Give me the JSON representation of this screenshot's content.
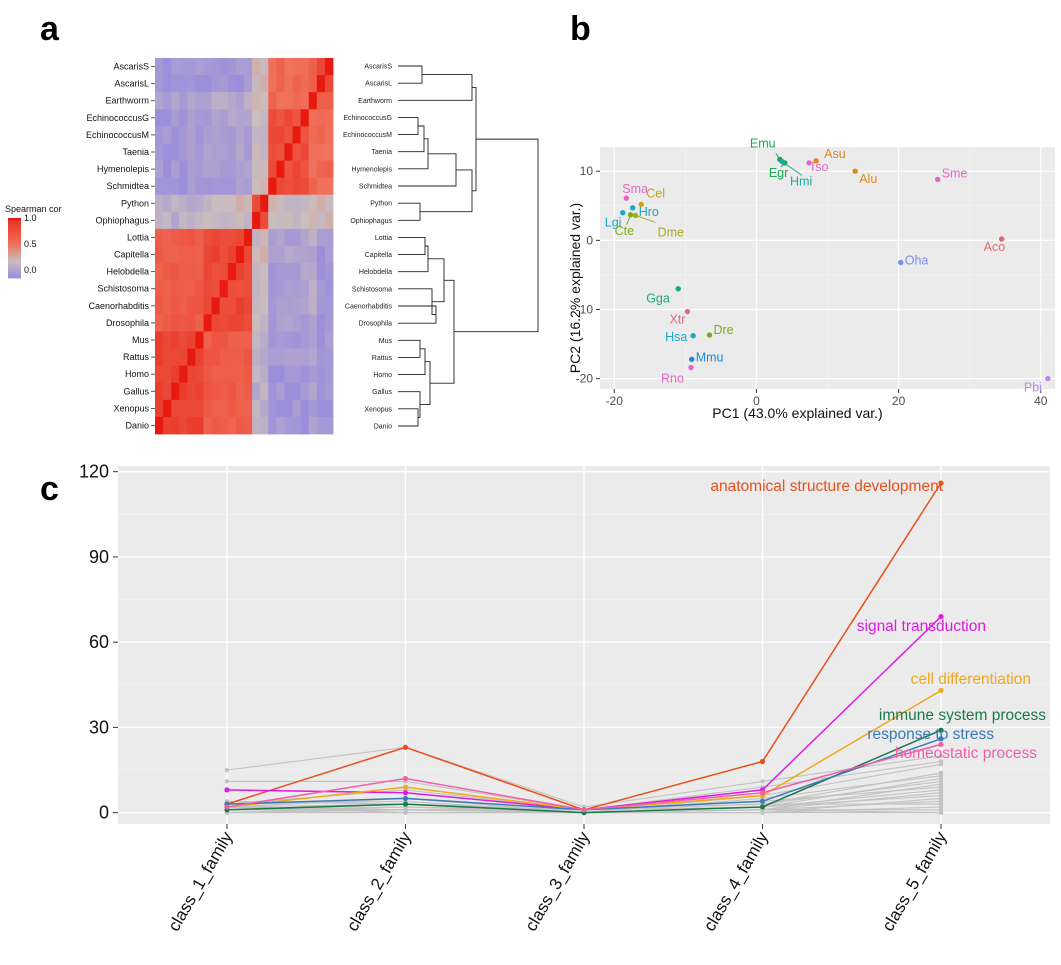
{
  "panels": {
    "a": "a",
    "b": "b",
    "c": "c"
  },
  "colors": {
    "ggplot_bg": "#ebebeb",
    "heat_high": "#e8190f",
    "heat_mid": "#cbbdbd",
    "heat_low": "#9b8fdc"
  },
  "chart_data": [
    {
      "type": "heatmap",
      "species": [
        "AscarisS",
        "AscarisL",
        "Earthworm",
        "EchinococcusG",
        "EchinococcusM",
        "Taenia",
        "Hymenolepis",
        "Schmidtea",
        "Python",
        "Ophiophagus",
        "Lottia",
        "Capitella",
        "Helobdella",
        "Schistosoma",
        "Caenorhabditis",
        "Drosophila",
        "Mus",
        "Rattus",
        "Homo",
        "Gallus",
        "Xenopus",
        "Danio"
      ],
      "legend": {
        "title": "Spearman cor",
        "ticks": [
          "1.0",
          "0.5",
          "0.0"
        ],
        "tick_values": [
          1.0,
          0.5,
          0.0
        ],
        "range": [
          -0.15,
          1.0
        ]
      },
      "dendrogram_labels": [
        "AscarisS",
        "AscarisL",
        "Earthworm",
        "EchinococcusG",
        "EchinococcusM",
        "Taenia",
        "Hymenolepis",
        "Schmidtea",
        "Python",
        "Ophiophagus",
        "Lottia",
        "Capitella",
        "Helobdella",
        "Schistosoma",
        "Caenorhabditis",
        "Drosophila",
        "Mus",
        "Rattus",
        "Homo",
        "Gallus",
        "Xenopus",
        "Danio"
      ]
    },
    {
      "type": "scatter",
      "xlabel": "PC1 (43.0% explained var.)",
      "ylabel": "PC2 (16.2% explained var.)",
      "xlim": [
        -22,
        42
      ],
      "ylim": [
        -21.5,
        13.5
      ],
      "xticks": [
        -20,
        0,
        20,
        40
      ],
      "yticks": [
        -20,
        -10,
        0,
        10
      ],
      "points": [
        {
          "label": "Emu",
          "x": 3.3,
          "y": 11.7,
          "color": "#1aa84e"
        },
        {
          "label": "Egr",
          "x": 4.0,
          "y": 11.2,
          "color": "#1aa84e"
        },
        {
          "label": "Hmi",
          "x": 3.6,
          "y": 11.4,
          "color": "#1aa8a8"
        },
        {
          "label": "Tso",
          "x": 7.4,
          "y": 11.2,
          "color": "#e466c8"
        },
        {
          "label": "Asu",
          "x": 8.4,
          "y": 11.5,
          "color": "#dd8a1a"
        },
        {
          "label": "Alu",
          "x": 13.9,
          "y": 10.0,
          "color": "#dd8a1a"
        },
        {
          "label": "Sme",
          "x": 25.5,
          "y": 8.8,
          "color": "#e466c8"
        },
        {
          "label": "Sma",
          "x": -18.3,
          "y": 6.1,
          "color": "#e466c8"
        },
        {
          "label": "Cel",
          "x": -16.2,
          "y": 5.2,
          "color": "#c8a21a"
        },
        {
          "label": "Hro",
          "x": -17.4,
          "y": 4.7,
          "color": "#1aa8c8"
        },
        {
          "label": "Lgi",
          "x": -18.8,
          "y": 4.0,
          "color": "#1aa8c8"
        },
        {
          "label": "Cte",
          "x": -17.7,
          "y": 3.7,
          "color": "#7aae1e"
        },
        {
          "label": "Dme",
          "x": -17.0,
          "y": 3.6,
          "color": "#aaaa1e"
        },
        {
          "label": "Aco",
          "x": 34.5,
          "y": 0.2,
          "color": "#e06a6a"
        },
        {
          "label": "Oha",
          "x": 20.3,
          "y": -3.2,
          "color": "#7b8ee8"
        },
        {
          "label": "Gga",
          "x": -11.0,
          "y": -7.0,
          "color": "#1aa884"
        },
        {
          "label": "Xtr",
          "x": -9.7,
          "y": -10.3,
          "color": "#e06a8a"
        },
        {
          "label": "Dre",
          "x": -6.6,
          "y": -13.7,
          "color": "#7aae1e"
        },
        {
          "label": "Hsa",
          "x": -8.9,
          "y": -13.8,
          "color": "#1aa8c8"
        },
        {
          "label": "Mmu",
          "x": -9.1,
          "y": -17.2,
          "color": "#1a88e0"
        },
        {
          "label": "Rno",
          "x": -9.2,
          "y": -18.4,
          "color": "#e466c8"
        },
        {
          "label": "Pbi",
          "x": 41.0,
          "y": -20.0,
          "color": "#b88ae8"
        }
      ]
    },
    {
      "type": "line",
      "categories": [
        "class_1_family",
        "class_2_family",
        "class_3_family",
        "class_4_family",
        "class_5_family"
      ],
      "ylim": [
        -4,
        122
      ],
      "yticks": [
        0,
        30,
        60,
        90,
        120
      ],
      "series": [
        {
          "name": "anatomical structure development",
          "values": [
            3,
            23,
            1,
            18,
            116
          ],
          "color": "#e8501a"
        },
        {
          "name": "signal transduction",
          "values": [
            8,
            7,
            1,
            8,
            69
          ],
          "color": "#e01ae0"
        },
        {
          "name": "cell differentiation",
          "values": [
            2,
            9,
            1,
            6,
            43
          ],
          "color": "#f0a81a"
        },
        {
          "name": "immune system process",
          "values": [
            1,
            3,
            0,
            2,
            29
          ],
          "color": "#1a7a4a"
        },
        {
          "name": "response to stress",
          "values": [
            3,
            5,
            1,
            4,
            26
          ],
          "color": "#3a7ab8"
        },
        {
          "name": "homeostatic process",
          "values": [
            2,
            12,
            1,
            7,
            24
          ],
          "color": "#f060a8"
        }
      ],
      "background_series": [
        [
          15,
          23,
          2,
          11,
          20
        ],
        [
          11,
          11,
          1,
          9,
          18
        ],
        [
          4,
          3,
          0,
          6,
          17
        ],
        [
          3,
          8,
          1,
          3,
          14
        ],
        [
          2,
          5,
          0,
          5,
          13
        ],
        [
          1,
          2,
          0,
          2,
          12
        ],
        [
          0,
          1,
          1,
          3,
          11
        ],
        [
          3,
          4,
          0,
          1,
          10
        ],
        [
          2,
          3,
          1,
          4,
          9
        ],
        [
          1,
          1,
          0,
          2,
          8
        ],
        [
          0,
          2,
          0,
          1,
          7
        ],
        [
          2,
          1,
          1,
          2,
          6
        ],
        [
          1,
          3,
          0,
          0,
          5
        ],
        [
          0,
          0,
          0,
          1,
          4
        ],
        [
          1,
          2,
          1,
          3,
          3
        ],
        [
          0,
          1,
          0,
          0,
          2
        ],
        [
          2,
          0,
          0,
          1,
          1
        ],
        [
          0,
          0,
          0,
          0,
          0
        ],
        [
          1,
          1,
          0,
          1,
          0
        ]
      ],
      "background_color": "#c2c2c2"
    }
  ]
}
